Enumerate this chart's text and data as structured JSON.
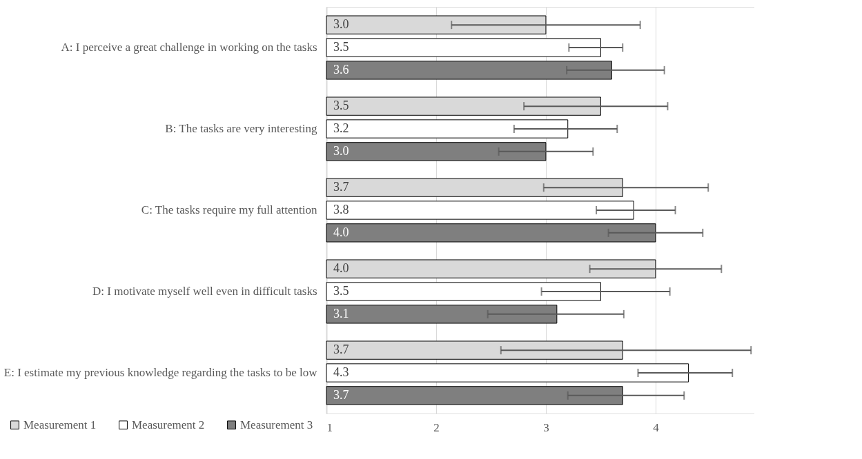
{
  "chart_data": {
    "type": "bar",
    "orientation": "horizontal",
    "categories": [
      "A: I perceive a great challenge in working on the tasks",
      "B: The tasks are very interesting",
      "C: The tasks require my full attention",
      "D: I motivate myself well even in difficult tasks",
      "E: I estimate my previous knowledge regarding the tasks to be low"
    ],
    "series": [
      {
        "name": "Measurement 1",
        "color": "#d9d9d9",
        "values": [
          3.0,
          3.5,
          3.7,
          4.0,
          3.7
        ],
        "value_labels": [
          "3.0",
          "3.5",
          "3.7",
          "4.0",
          "3.7"
        ],
        "errors": [
          [
            2.14,
            3.86
          ],
          [
            2.8,
            4.11
          ],
          [
            2.98,
            4.48
          ],
          [
            3.4,
            4.6
          ],
          [
            2.59,
            4.87
          ]
        ]
      },
      {
        "name": "Measurement 2",
        "color": "#ffffff",
        "values": [
          3.5,
          3.2,
          3.8,
          3.5,
          4.3
        ],
        "value_labels": [
          "3.5",
          "3.2",
          "3.8",
          "3.5",
          "4.3"
        ],
        "errors": [
          [
            3.21,
            3.7
          ],
          [
            2.71,
            3.65
          ],
          [
            3.46,
            4.18
          ],
          [
            2.96,
            4.13
          ],
          [
            3.84,
            4.7
          ]
        ]
      },
      {
        "name": "Measurement 3",
        "color": "#7f7f7f",
        "values": [
          3.6,
          3.0,
          4.0,
          3.1,
          3.7
        ],
        "value_labels": [
          "3.6",
          "3.0",
          "4.0",
          "3.1",
          "3.7"
        ],
        "errors": [
          [
            3.19,
            4.08
          ],
          [
            2.57,
            3.43
          ],
          [
            3.57,
            4.43
          ],
          [
            2.47,
            3.71
          ],
          [
            3.2,
            4.26
          ]
        ]
      }
    ],
    "xlim": [
      1,
      4.9
    ],
    "xticks": [
      1,
      2,
      3,
      4
    ],
    "grid": "x",
    "legend": "bottom left"
  }
}
